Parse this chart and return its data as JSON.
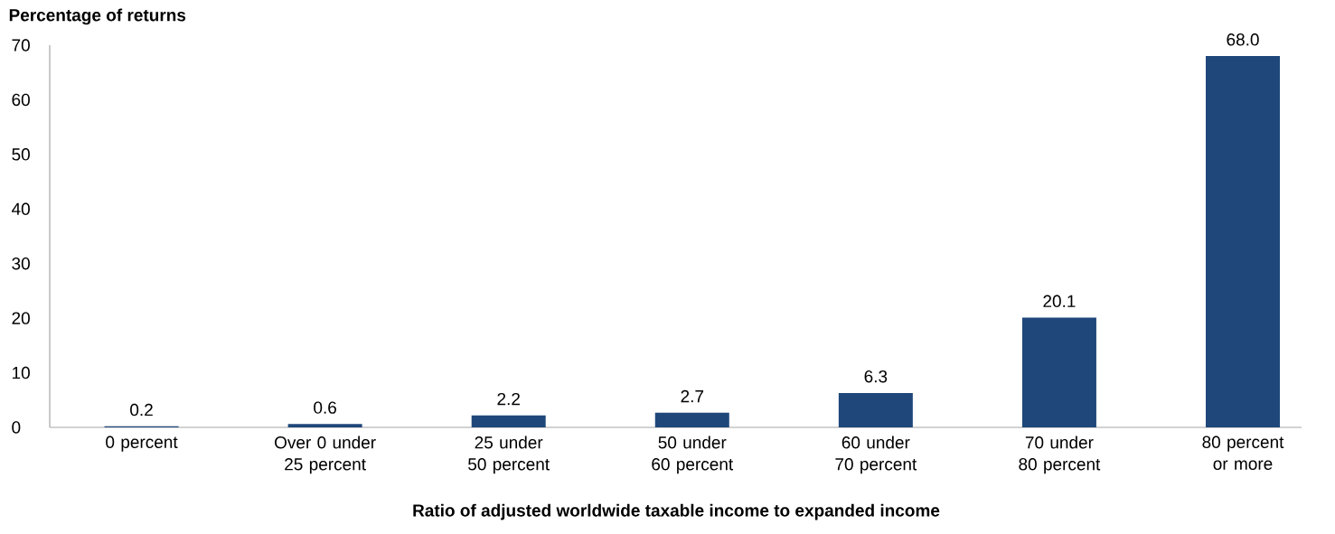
{
  "chart_data": {
    "type": "bar",
    "ylabel": "Percentage of returns",
    "xlabel": "Ratio of adjusted worldwide taxable income to expanded income",
    "categories": [
      "0 percent",
      "Over 0 under 25 percent",
      "25 under 50 percent",
      "50 under 60 percent",
      "60 under 70 percent",
      "70 under 80 percent",
      "80 percent or more"
    ],
    "values": [
      0.2,
      0.6,
      2.2,
      2.7,
      6.3,
      20.1,
      68.0
    ],
    "value_labels": [
      "0.2",
      "0.6",
      "2.2",
      "2.7",
      "6.3",
      "20.1",
      "68.0"
    ],
    "color": "#1f477a",
    "ylim": [
      0,
      70
    ],
    "yticks": [
      0,
      10,
      20,
      30,
      40,
      50,
      60,
      70
    ],
    "grid": false
  }
}
